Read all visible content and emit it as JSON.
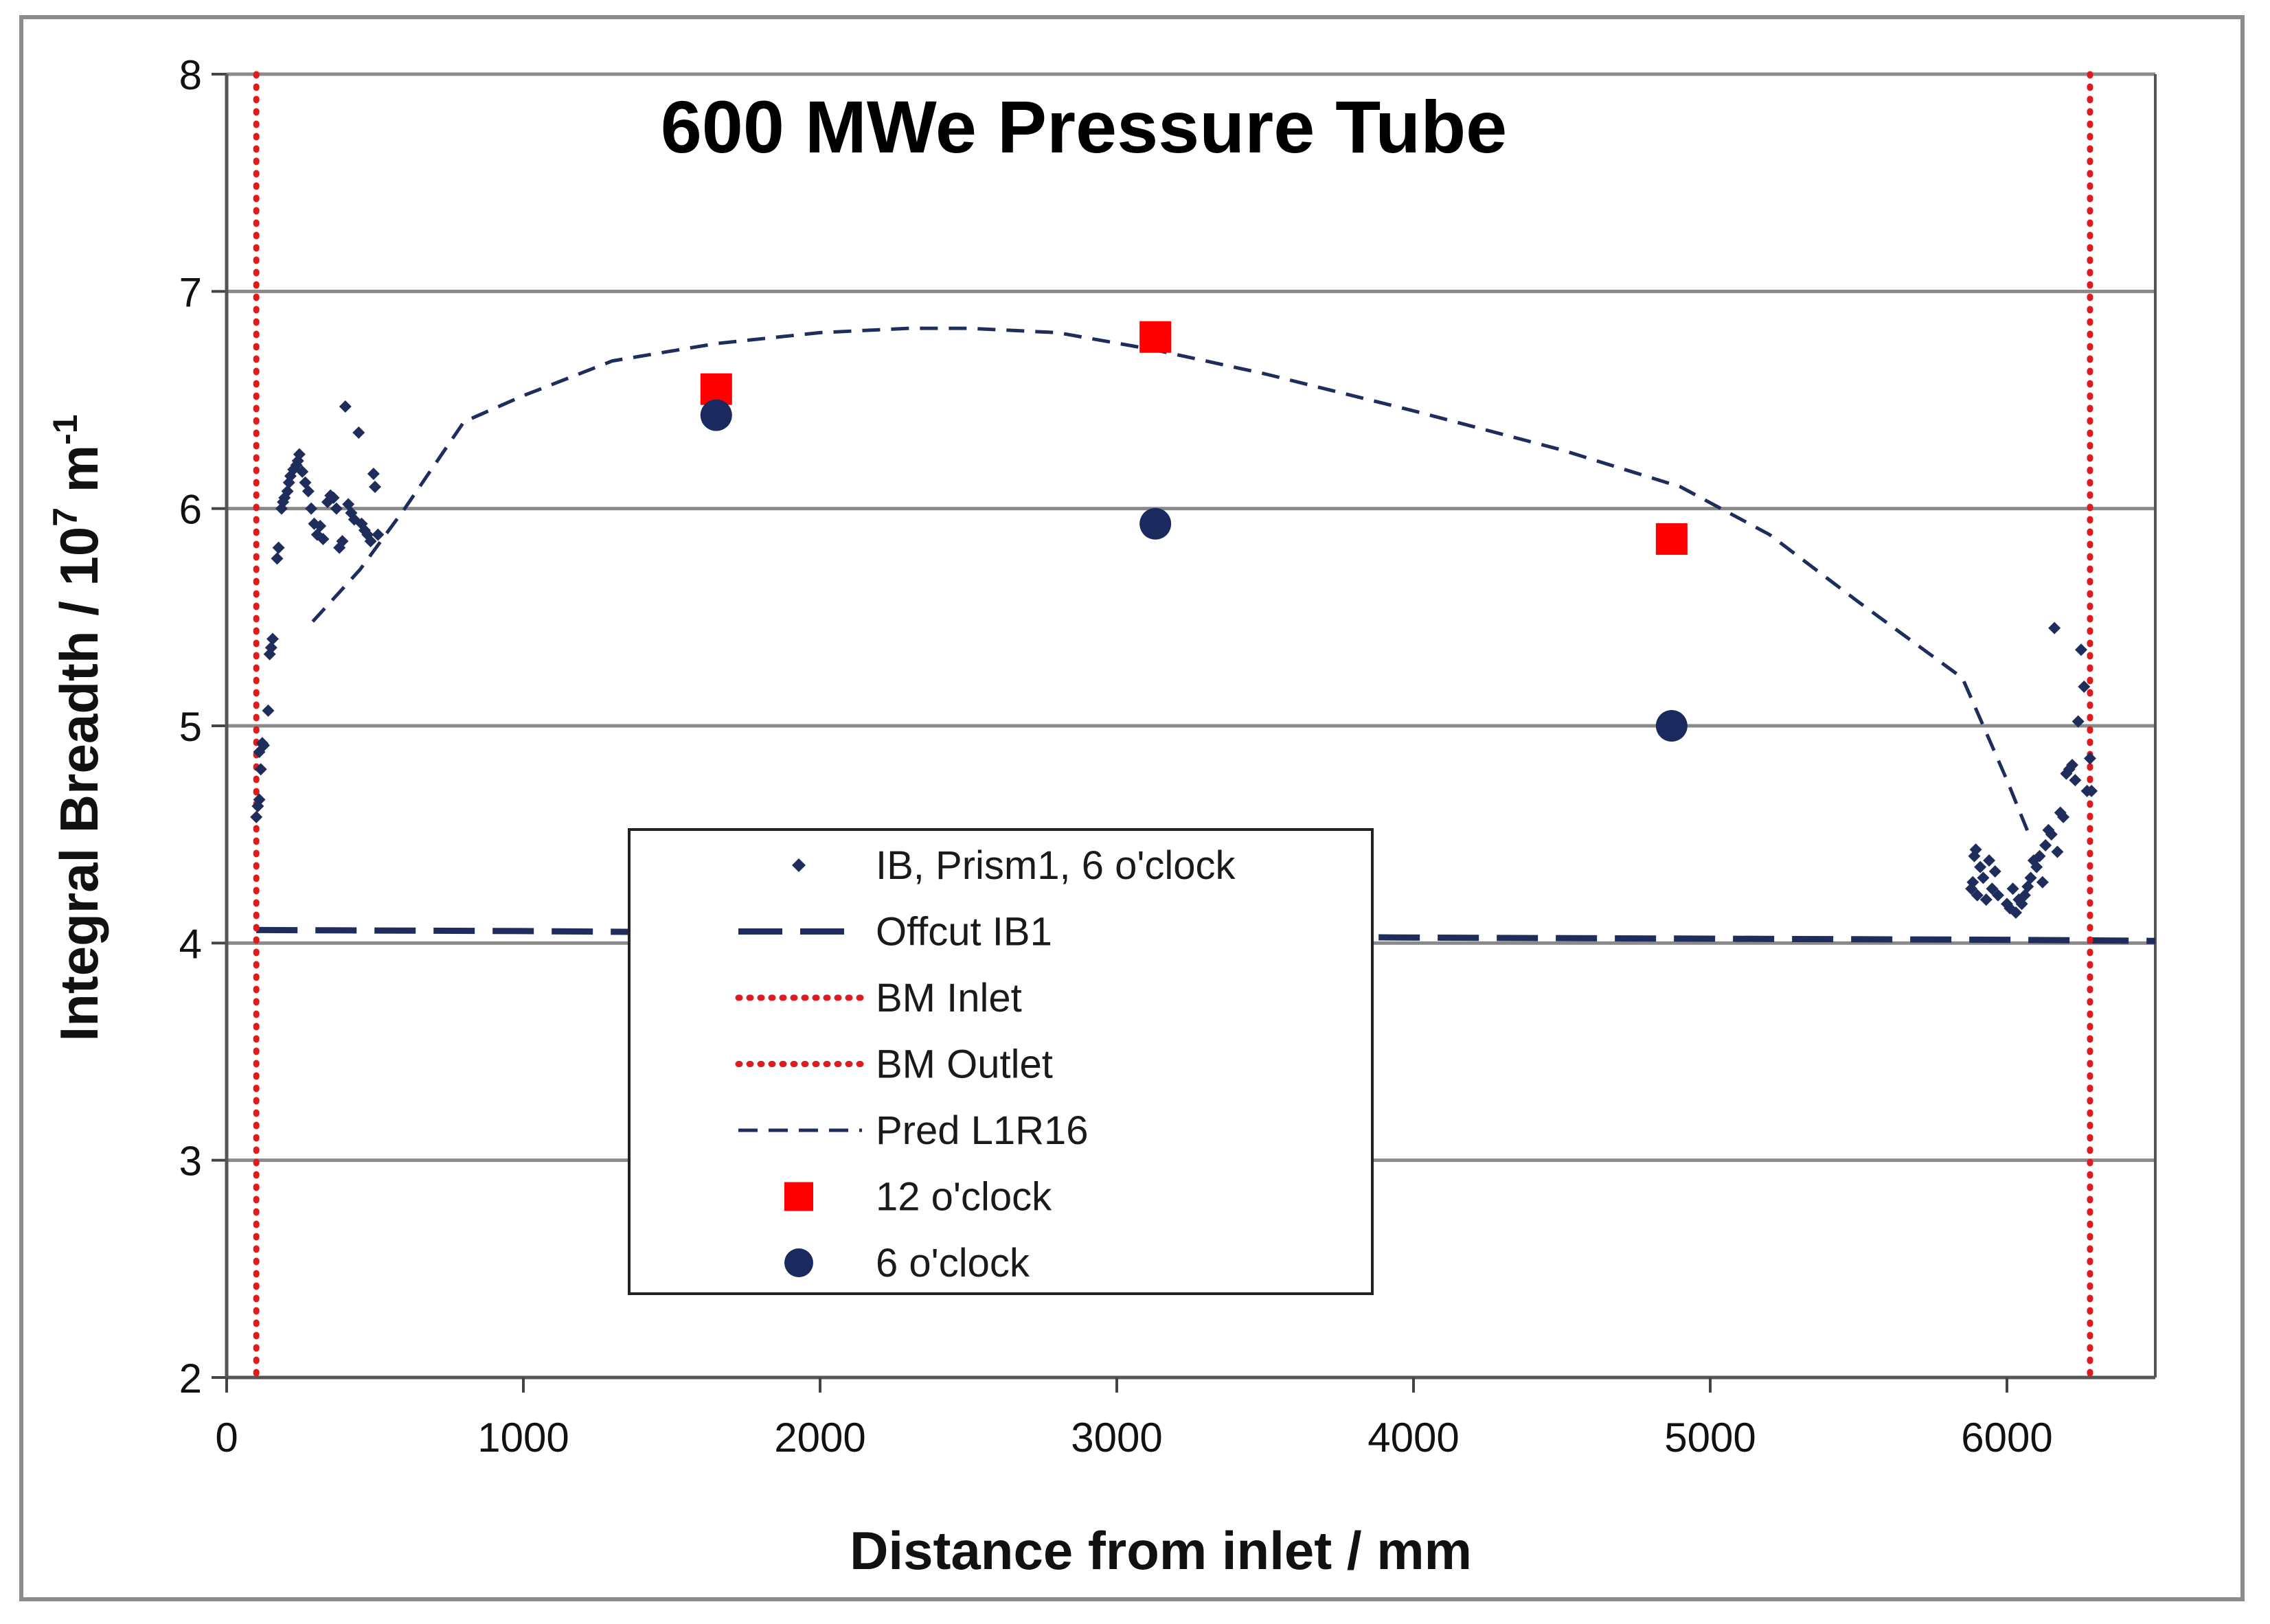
{
  "chart_data": {
    "type": "scatter",
    "title": "600 MWe Pressure Tube",
    "xlabel": "Distance from inlet / mm",
    "ylabel_main": "Integral Breadth / 10",
    "ylabel_sup": "7",
    "ylabel_unit": " m",
    "ylabel_unit_sup": "-1",
    "xlim": [
      0,
      6500
    ],
    "ylim": [
      2,
      8
    ],
    "x_ticks": [
      0,
      1000,
      2000,
      3000,
      4000,
      5000,
      6000
    ],
    "y_ticks": [
      2,
      3,
      4,
      5,
      6,
      7,
      8
    ],
    "x_tick_labels": [
      "0",
      "1000",
      "2000",
      "3000",
      "4000",
      "5000",
      "6000"
    ],
    "y_tick_labels": [
      "2",
      "3",
      "4",
      "5",
      "6",
      "7",
      "8"
    ],
    "grid": "horizontal",
    "legend_position": "center-bottom",
    "series": [
      {
        "name": "IB, Prism1, 6 o'clock",
        "kind": "scatter-diamond",
        "color": "#1f2d5c",
        "points": [
          [
            100,
            4.58
          ],
          [
            105,
            4.63
          ],
          [
            110,
            4.66
          ],
          [
            115,
            4.8
          ],
          [
            110,
            4.88
          ],
          [
            120,
            4.92
          ],
          [
            125,
            4.91
          ],
          [
            140,
            5.07
          ],
          [
            145,
            5.33
          ],
          [
            150,
            5.36
          ],
          [
            155,
            5.4
          ],
          [
            170,
            5.77
          ],
          [
            175,
            5.82
          ],
          [
            185,
            6.0
          ],
          [
            190,
            6.03
          ],
          [
            195,
            6.05
          ],
          [
            205,
            6.08
          ],
          [
            210,
            6.12
          ],
          [
            215,
            6.15
          ],
          [
            225,
            6.18
          ],
          [
            235,
            6.2
          ],
          [
            240,
            6.22
          ],
          [
            245,
            6.25
          ],
          [
            255,
            6.17
          ],
          [
            265,
            6.12
          ],
          [
            275,
            6.08
          ],
          [
            285,
            6.0
          ],
          [
            295,
            5.93
          ],
          [
            305,
            5.88
          ],
          [
            315,
            5.92
          ],
          [
            325,
            5.86
          ],
          [
            340,
            6.03
          ],
          [
            350,
            6.06
          ],
          [
            360,
            6.05
          ],
          [
            370,
            6.0
          ],
          [
            380,
            5.82
          ],
          [
            390,
            5.85
          ],
          [
            400,
            6.47
          ],
          [
            410,
            6.02
          ],
          [
            420,
            5.98
          ],
          [
            430,
            5.95
          ],
          [
            445,
            6.35
          ],
          [
            455,
            5.93
          ],
          [
            465,
            5.9
          ],
          [
            475,
            5.88
          ],
          [
            485,
            5.85
          ],
          [
            495,
            6.16
          ],
          [
            500,
            6.1
          ],
          [
            510,
            5.88
          ],
          [
            5880,
            4.25
          ],
          [
            5885,
            4.28
          ],
          [
            5890,
            4.4
          ],
          [
            5895,
            4.43
          ],
          [
            5900,
            4.22
          ],
          [
            5910,
            4.35
          ],
          [
            5920,
            4.3
          ],
          [
            5930,
            4.2
          ],
          [
            5940,
            4.38
          ],
          [
            5950,
            4.25
          ],
          [
            5960,
            4.33
          ],
          [
            5970,
            4.22
          ],
          [
            6000,
            4.18
          ],
          [
            6010,
            4.16
          ],
          [
            6020,
            4.25
          ],
          [
            6030,
            4.14
          ],
          [
            6040,
            4.2
          ],
          [
            6050,
            4.18
          ],
          [
            6060,
            4.22
          ],
          [
            6070,
            4.26
          ],
          [
            6080,
            4.3
          ],
          [
            6090,
            4.38
          ],
          [
            6100,
            4.35
          ],
          [
            6110,
            4.4
          ],
          [
            6120,
            4.28
          ],
          [
            6130,
            4.45
          ],
          [
            6140,
            4.52
          ],
          [
            6150,
            4.5
          ],
          [
            6160,
            5.45
          ],
          [
            6170,
            4.42
          ],
          [
            6180,
            4.6
          ],
          [
            6190,
            4.58
          ],
          [
            6200,
            4.78
          ],
          [
            6210,
            4.8
          ],
          [
            6220,
            4.82
          ],
          [
            6230,
            4.75
          ],
          [
            6240,
            5.02
          ],
          [
            6250,
            5.35
          ],
          [
            6260,
            5.18
          ],
          [
            6270,
            4.7
          ],
          [
            6280,
            4.85
          ],
          [
            6285,
            4.7
          ]
        ]
      },
      {
        "name": "Offcut IB1",
        "kind": "line-longdash",
        "color": "#1f2d5c",
        "points": [
          [
            100,
            4.06
          ],
          [
            1000,
            4.055
          ],
          [
            2000,
            4.045
          ],
          [
            3000,
            4.035
          ],
          [
            4000,
            4.025
          ],
          [
            5000,
            4.02
          ],
          [
            6000,
            4.015
          ],
          [
            6500,
            4.01
          ]
        ]
      },
      {
        "name": "BM Inlet",
        "kind": "vline-dotted",
        "color": "#e01b1b",
        "x": 100
      },
      {
        "name": "BM Outlet",
        "kind": "vline-dotted",
        "color": "#e01b1b",
        "x": 6280
      },
      {
        "name": "Pred L1R16",
        "kind": "line-dash",
        "color": "#1f2d5c",
        "points": [
          [
            290,
            5.48
          ],
          [
            450,
            5.72
          ],
          [
            600,
            6.0
          ],
          [
            800,
            6.4
          ],
          [
            1000,
            6.52
          ],
          [
            1300,
            6.68
          ],
          [
            1650,
            6.76
          ],
          [
            2000,
            6.81
          ],
          [
            2300,
            6.83
          ],
          [
            2500,
            6.83
          ],
          [
            2800,
            6.81
          ],
          [
            3130,
            6.73
          ],
          [
            3500,
            6.62
          ],
          [
            4000,
            6.45
          ],
          [
            4500,
            6.27
          ],
          [
            4900,
            6.1
          ],
          [
            5200,
            5.88
          ],
          [
            5500,
            5.57
          ],
          [
            5850,
            5.22
          ],
          [
            6000,
            4.75
          ],
          [
            6080,
            4.48
          ]
        ]
      },
      {
        "name": "12 o'clock",
        "kind": "scatter-square",
        "color": "#ff0000",
        "points": [
          [
            1650,
            6.55
          ],
          [
            3130,
            6.79
          ],
          [
            4870,
            5.86
          ]
        ]
      },
      {
        "name": "6 o'clock",
        "kind": "scatter-circle",
        "color": "#1a2a5e",
        "points": [
          [
            1650,
            6.43
          ],
          [
            3130,
            5.93
          ],
          [
            4870,
            5.0
          ]
        ]
      }
    ]
  }
}
